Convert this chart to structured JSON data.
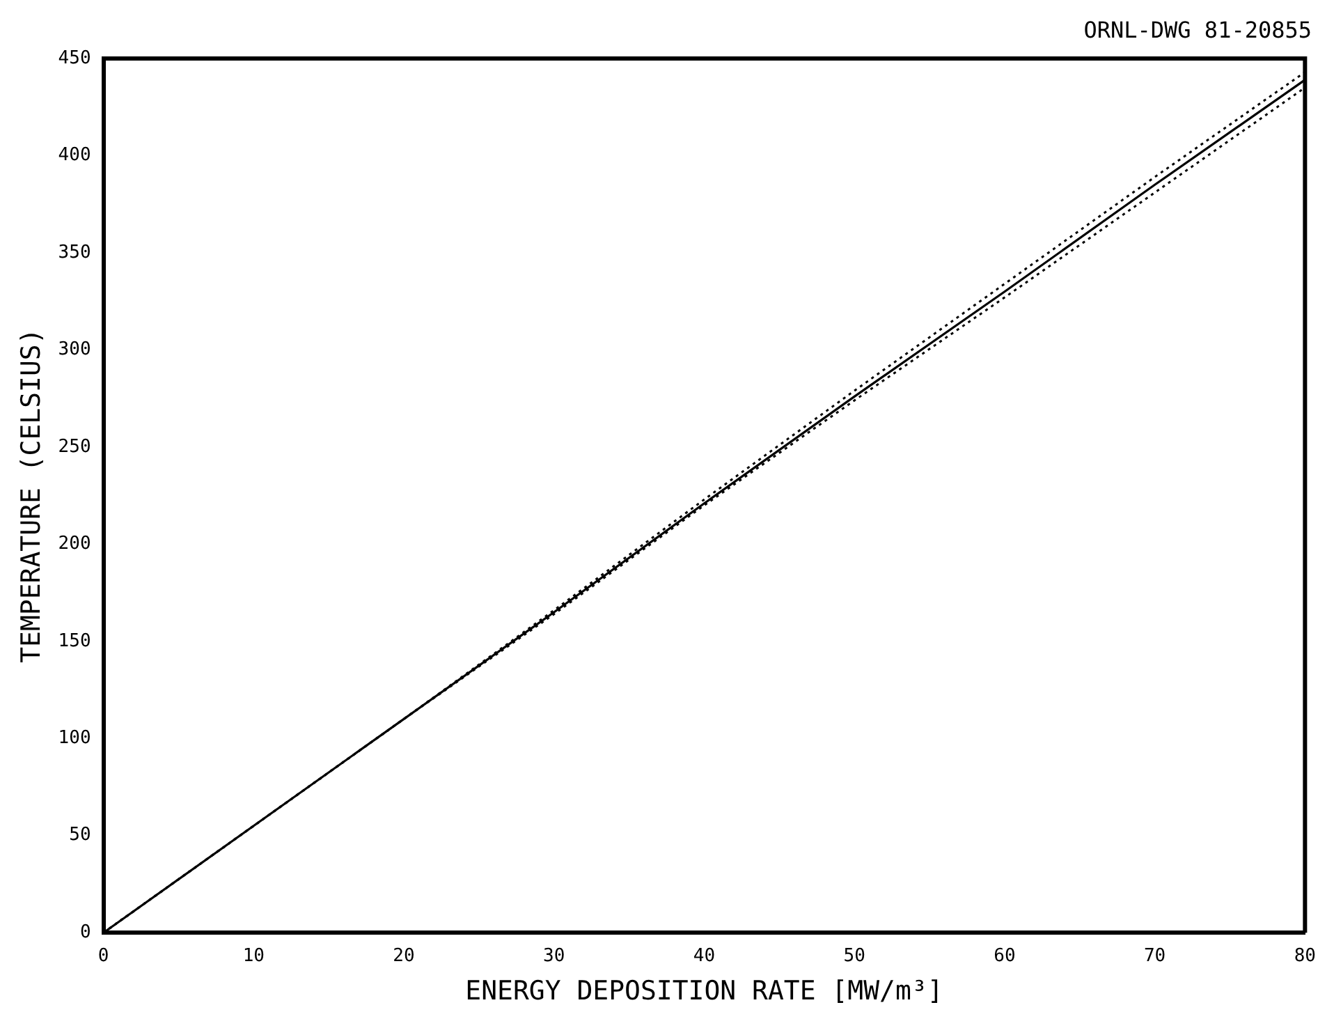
{
  "chart_data": {
    "type": "line",
    "xlabel": "ENERGY DEPOSITION RATE [MW/m³]",
    "ylabel": "TEMPERATURE (CELSIUS)",
    "annotations": [
      "ORNL-DWG 81-20855"
    ],
    "x": [
      0,
      10,
      20,
      30,
      40,
      50,
      60,
      70,
      80
    ],
    "xlim": [
      0,
      80
    ],
    "xticks": [
      0,
      10,
      20,
      30,
      40,
      50,
      60,
      70,
      80
    ],
    "ylim": [
      0,
      450
    ],
    "yticks": [
      0,
      50,
      100,
      150,
      200,
      250,
      300,
      350,
      400,
      450
    ],
    "grid": false,
    "legend": false,
    "marker": "none",
    "series": [
      {
        "color": "#000000",
        "line_style": "solid",
        "values": [
          0,
          55,
          110,
          165,
          221,
          276,
          330,
          385,
          439
        ]
      },
      {
        "color": "#000000",
        "line_style": "dotted",
        "values": [
          0,
          55,
          110,
          166,
          223,
          279,
          334,
          389,
          443
        ]
      },
      {
        "color": "#000000",
        "line_style": "dotted",
        "values": [
          0,
          55,
          110,
          164,
          220,
          274,
          327,
          381,
          435
        ]
      }
    ]
  }
}
